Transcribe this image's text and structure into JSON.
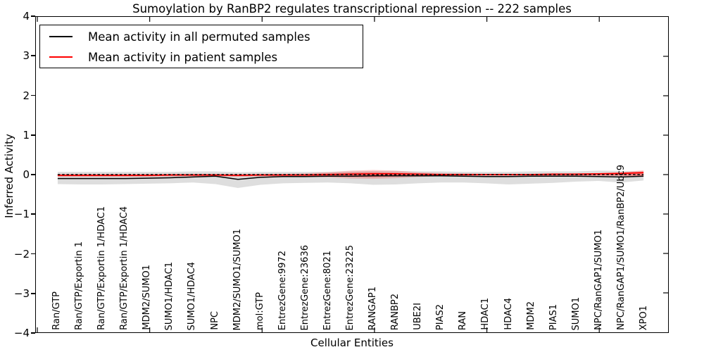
{
  "figure": {
    "title": "Sumoylation by RanBP2 regulates transcriptional repression -- 222 samples",
    "xlabel": "Cellular Entities",
    "ylabel": "Inferred Activity"
  },
  "chart_data": {
    "type": "line",
    "title": "Sumoylation by RanBP2 regulates transcriptional repression -- 222 samples",
    "xlabel": "Cellular Entities",
    "ylabel": "Inferred Activity",
    "ylim": [
      -4,
      4
    ],
    "yticks": [
      "4",
      "3",
      "2",
      "1",
      "0",
      "−1",
      "−2",
      "−3",
      "−4"
    ],
    "grid": false,
    "legend_position": "upper left",
    "categories": [
      "Ran/GTP",
      "Ran/GTP/Exportin 1",
      "Ran/GTP/Exportin 1/HDAC1",
      "Ran/GTP/Exportin 1/HDAC4",
      "MDM2/SUMO1",
      "SUMO1/HDAC1",
      "SUMO1/HDAC4",
      "NPC",
      "MDM2/SUMO1/SUMO1",
      "mol:GTP",
      "EntrezGene:9972",
      "EntrezGene:23636",
      "EntrezGene:8021",
      "EntrezGene:23225",
      "RANGAP1",
      "RANBP2",
      "UBE2I",
      "PIAS2",
      "RAN",
      "HDAC1",
      "HDAC4",
      "MDM2",
      "PIAS1",
      "SUMO1",
      "NPC/RanGAP1/SUMO1",
      "NPC/RanGAP1/SUMO1/RanBP2/Ubc9",
      "XPO1"
    ],
    "series": [
      {
        "name": "Mean activity in all permuted samples",
        "color": "#000000",
        "style": "solid",
        "values": [
          -0.1,
          -0.1,
          -0.1,
          -0.1,
          -0.09,
          -0.08,
          -0.06,
          -0.04,
          -0.12,
          -0.07,
          -0.05,
          -0.05,
          -0.04,
          -0.04,
          -0.03,
          -0.03,
          -0.03,
          -0.03,
          -0.04,
          -0.05,
          -0.05,
          -0.04,
          -0.04,
          -0.04,
          -0.05,
          -0.06,
          -0.04
        ]
      },
      {
        "name": "Mean activity in patient samples",
        "color": "#ff0000",
        "style": "solid",
        "values": [
          -0.02,
          -0.02,
          -0.02,
          -0.02,
          -0.02,
          -0.01,
          -0.01,
          -0.01,
          -0.02,
          -0.01,
          -0.01,
          -0.01,
          0.0,
          0.01,
          0.02,
          0.02,
          0.01,
          0.0,
          0.0,
          0.0,
          0.0,
          0.0,
          0.01,
          0.01,
          0.02,
          0.03,
          0.05
        ]
      }
    ],
    "bands": [
      {
        "name": "permuted-sample-range",
        "color": "#000000",
        "opacity": 0.13,
        "upper": [
          0.07,
          0.07,
          0.07,
          0.07,
          0.07,
          0.07,
          0.08,
          0.08,
          0.06,
          0.07,
          0.07,
          0.07,
          0.07,
          0.08,
          0.09,
          0.09,
          0.08,
          0.08,
          0.07,
          0.07,
          0.07,
          0.08,
          0.08,
          0.08,
          0.1,
          0.09,
          0.08
        ],
        "lower": [
          -0.24,
          -0.25,
          -0.25,
          -0.24,
          -0.23,
          -0.22,
          -0.2,
          -0.24,
          -0.34,
          -0.26,
          -0.22,
          -0.21,
          -0.2,
          -0.22,
          -0.26,
          -0.25,
          -0.22,
          -0.2,
          -0.2,
          -0.22,
          -0.25,
          -0.23,
          -0.21,
          -0.18,
          -0.16,
          -0.2,
          -0.15
        ]
      },
      {
        "name": "patient-sample-range-outer",
        "color": "#ff0000",
        "opacity": 0.18,
        "upper": [
          0.02,
          0.02,
          0.02,
          0.02,
          0.02,
          0.02,
          0.02,
          0.02,
          0.02,
          0.02,
          0.02,
          0.03,
          0.06,
          0.1,
          0.12,
          0.1,
          0.06,
          0.04,
          0.03,
          0.02,
          0.02,
          0.02,
          0.03,
          0.03,
          0.04,
          0.06,
          0.11
        ],
        "lower": [
          -0.06,
          -0.06,
          -0.06,
          -0.06,
          -0.06,
          -0.05,
          -0.05,
          -0.05,
          -0.06,
          -0.05,
          -0.05,
          -0.05,
          -0.07,
          -0.1,
          -0.11,
          -0.09,
          -0.06,
          -0.04,
          -0.03,
          -0.03,
          -0.03,
          -0.03,
          -0.03,
          -0.03,
          -0.04,
          -0.04,
          -0.06
        ]
      },
      {
        "name": "patient-sample-range-inner",
        "color": "#ff0000",
        "opacity": 0.28,
        "upper": [
          0.0,
          0.0,
          0.0,
          0.0,
          0.0,
          0.01,
          0.01,
          0.01,
          0.0,
          0.01,
          0.01,
          0.01,
          0.03,
          0.05,
          0.06,
          0.05,
          0.03,
          0.02,
          0.01,
          0.01,
          0.01,
          0.01,
          0.02,
          0.02,
          0.02,
          0.04,
          0.08
        ],
        "lower": [
          -0.04,
          -0.04,
          -0.04,
          -0.04,
          -0.04,
          -0.03,
          -0.03,
          -0.03,
          -0.04,
          -0.03,
          -0.03,
          -0.03,
          -0.04,
          -0.06,
          -0.07,
          -0.05,
          -0.04,
          -0.02,
          -0.02,
          -0.02,
          -0.02,
          -0.02,
          -0.02,
          -0.02,
          -0.02,
          -0.02,
          -0.03
        ]
      }
    ],
    "reference_line": {
      "y": 0,
      "style": "dashed",
      "color": "#000000"
    }
  }
}
